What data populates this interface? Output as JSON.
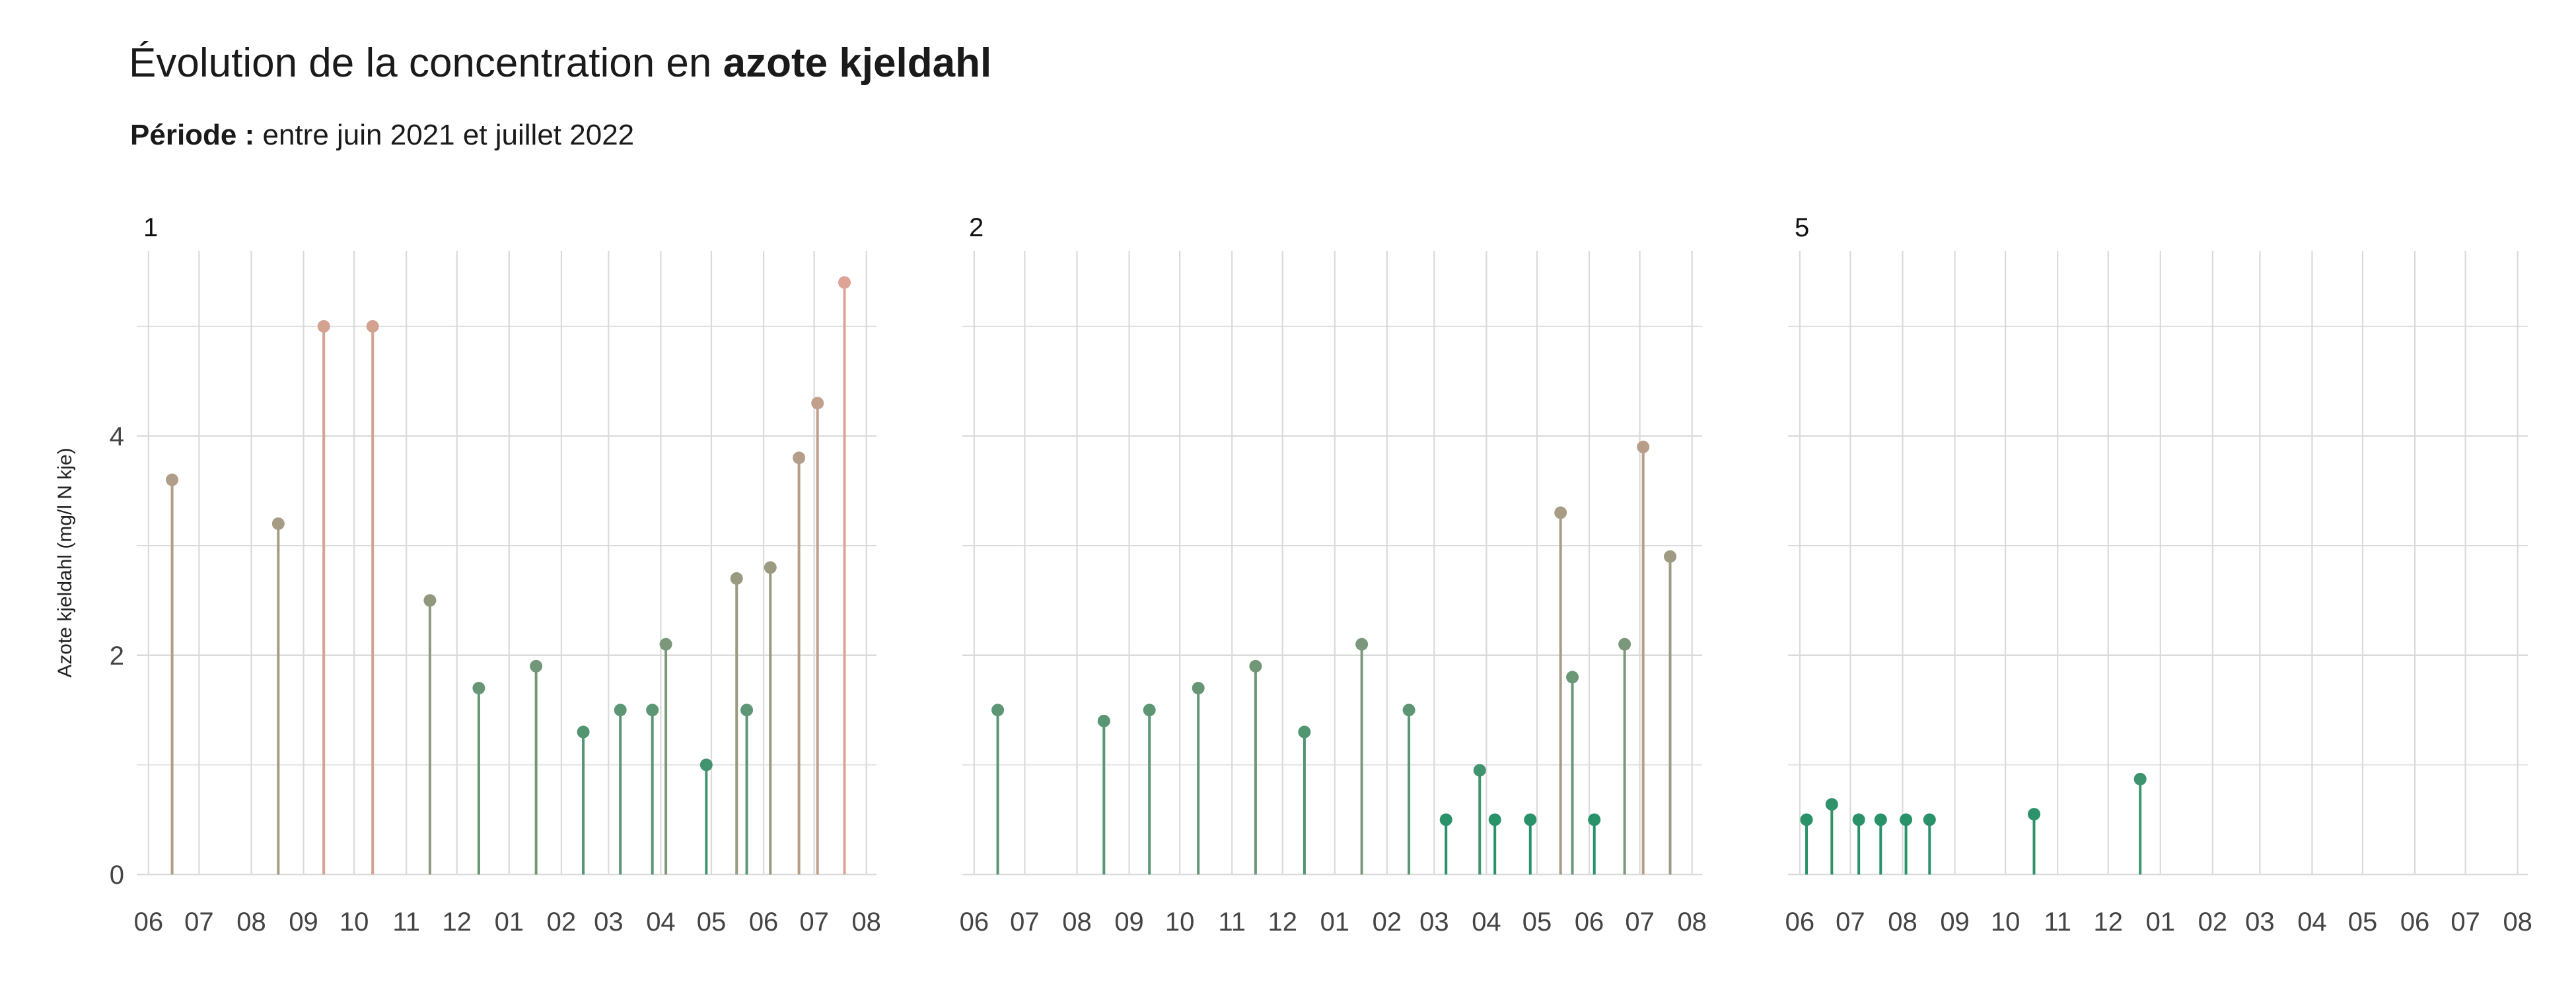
{
  "title": {
    "prefix": "Évolution de la concentration en ",
    "bold": "azote kjeldahl"
  },
  "subtitle": {
    "label": "Période :",
    "text": " entre juin 2021 et juillet 2022"
  },
  "colors": {
    "low": "#0f9064",
    "mid": "#9a9a80",
    "high": "#dda396",
    "grid": "#dadada",
    "text": "#444444"
  },
  "chart_data": {
    "type": "lollipop",
    "ylabel": "Azote kjeldahl (mg/l N kje)",
    "ylim": [
      0,
      5.4
    ],
    "yticks": [
      0,
      2,
      4
    ],
    "x_domain": [
      "2021-05-25",
      "2022-08-07"
    ],
    "x_ticks": [
      {
        "date": "2021-06-01",
        "label": "06"
      },
      {
        "date": "2021-07-01",
        "label": "07"
      },
      {
        "date": "2021-08-01",
        "label": "08"
      },
      {
        "date": "2021-09-01",
        "label": "09"
      },
      {
        "date": "2021-10-01",
        "label": "10"
      },
      {
        "date": "2021-11-01",
        "label": "11"
      },
      {
        "date": "2021-12-01",
        "label": "12"
      },
      {
        "date": "2022-01-01",
        "label": "01"
      },
      {
        "date": "2022-02-01",
        "label": "02"
      },
      {
        "date": "2022-03-01",
        "label": "03"
      },
      {
        "date": "2022-04-01",
        "label": "04"
      },
      {
        "date": "2022-05-01",
        "label": "05"
      },
      {
        "date": "2022-06-01",
        "label": "06"
      },
      {
        "date": "2022-07-01",
        "label": "07"
      },
      {
        "date": "2022-08-01",
        "label": "08"
      }
    ],
    "panels": [
      {
        "label": "1",
        "points": [
          {
            "date": "2021-06-15",
            "value": 3.6
          },
          {
            "date": "2021-08-17",
            "value": 3.2
          },
          {
            "date": "2021-09-13",
            "value": 5.0
          },
          {
            "date": "2021-10-12",
            "value": 5.0
          },
          {
            "date": "2021-11-15",
            "value": 2.5
          },
          {
            "date": "2021-12-14",
            "value": 1.7
          },
          {
            "date": "2022-01-17",
            "value": 1.9
          },
          {
            "date": "2022-02-14",
            "value": 1.3
          },
          {
            "date": "2022-03-08",
            "value": 1.5
          },
          {
            "date": "2022-03-27",
            "value": 1.5
          },
          {
            "date": "2022-04-04",
            "value": 2.1
          },
          {
            "date": "2022-04-28",
            "value": 1.0
          },
          {
            "date": "2022-05-16",
            "value": 2.7
          },
          {
            "date": "2022-05-22",
            "value": 1.5
          },
          {
            "date": "2022-06-05",
            "value": 2.8
          },
          {
            "date": "2022-06-22",
            "value": 3.8
          },
          {
            "date": "2022-07-03",
            "value": 4.3
          },
          {
            "date": "2022-07-19",
            "value": 5.4
          }
        ]
      },
      {
        "label": "2",
        "points": [
          {
            "date": "2021-06-15",
            "value": 1.5
          },
          {
            "date": "2021-08-17",
            "value": 1.4
          },
          {
            "date": "2021-09-13",
            "value": 1.5
          },
          {
            "date": "2021-10-12",
            "value": 1.7
          },
          {
            "date": "2021-11-15",
            "value": 1.9
          },
          {
            "date": "2021-12-14",
            "value": 1.3
          },
          {
            "date": "2022-01-17",
            "value": 2.1
          },
          {
            "date": "2022-02-14",
            "value": 1.5
          },
          {
            "date": "2022-03-08",
            "value": 0.5
          },
          {
            "date": "2022-03-28",
            "value": 0.95
          },
          {
            "date": "2022-04-06",
            "value": 0.5
          },
          {
            "date": "2022-04-27",
            "value": 0.5
          },
          {
            "date": "2022-05-15",
            "value": 3.3
          },
          {
            "date": "2022-05-22",
            "value": 1.8
          },
          {
            "date": "2022-06-04",
            "value": 0.5
          },
          {
            "date": "2022-06-22",
            "value": 2.1
          },
          {
            "date": "2022-07-03",
            "value": 3.9
          },
          {
            "date": "2022-07-19",
            "value": 2.9
          }
        ]
      },
      {
        "label": "5",
        "points": [
          {
            "date": "2021-06-05",
            "value": 0.5
          },
          {
            "date": "2021-06-20",
            "value": 0.64
          },
          {
            "date": "2021-07-06",
            "value": 0.5
          },
          {
            "date": "2021-07-19",
            "value": 0.5
          },
          {
            "date": "2021-08-03",
            "value": 0.5
          },
          {
            "date": "2021-08-17",
            "value": 0.5
          },
          {
            "date": "2021-10-18",
            "value": 0.55
          },
          {
            "date": "2021-12-20",
            "value": 0.87
          }
        ]
      }
    ]
  }
}
